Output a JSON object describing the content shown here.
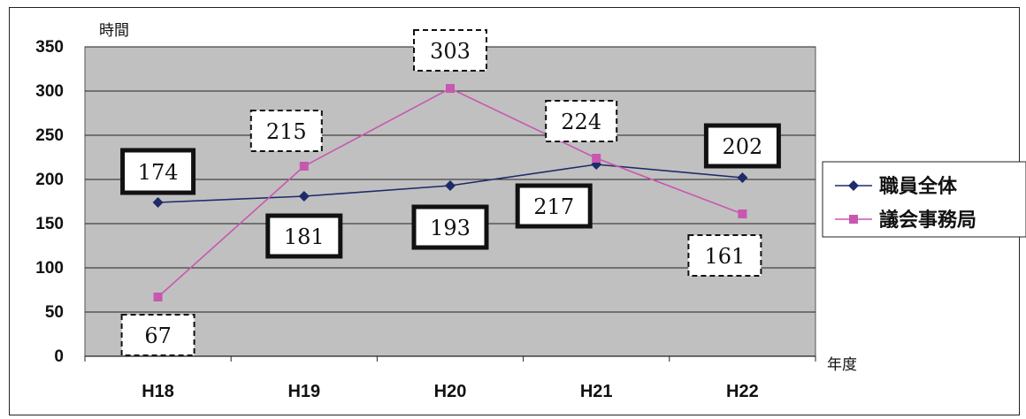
{
  "chart_data": {
    "type": "line",
    "categories": [
      "H18",
      "H19",
      "H20",
      "H21",
      "H22"
    ],
    "series": [
      {
        "name": "職員全体",
        "values": [
          174,
          181,
          193,
          217,
          202
        ],
        "color": "#1f2a6b",
        "marker": "diamond",
        "label_style": "solid-bold"
      },
      {
        "name": "議会事務局",
        "values": [
          67,
          215,
          303,
          224,
          161
        ],
        "color": "#c857b0",
        "marker": "square",
        "label_style": "dashed"
      }
    ],
    "ylabel": "時間",
    "xlabel": "年度",
    "ylim": [
      0,
      350
    ],
    "yticks": [
      "0",
      "50",
      "100",
      "150",
      "200",
      "250",
      "300",
      "350"
    ],
    "grid": true,
    "plot_background": "#c0c0c0",
    "legend_position": "right"
  }
}
